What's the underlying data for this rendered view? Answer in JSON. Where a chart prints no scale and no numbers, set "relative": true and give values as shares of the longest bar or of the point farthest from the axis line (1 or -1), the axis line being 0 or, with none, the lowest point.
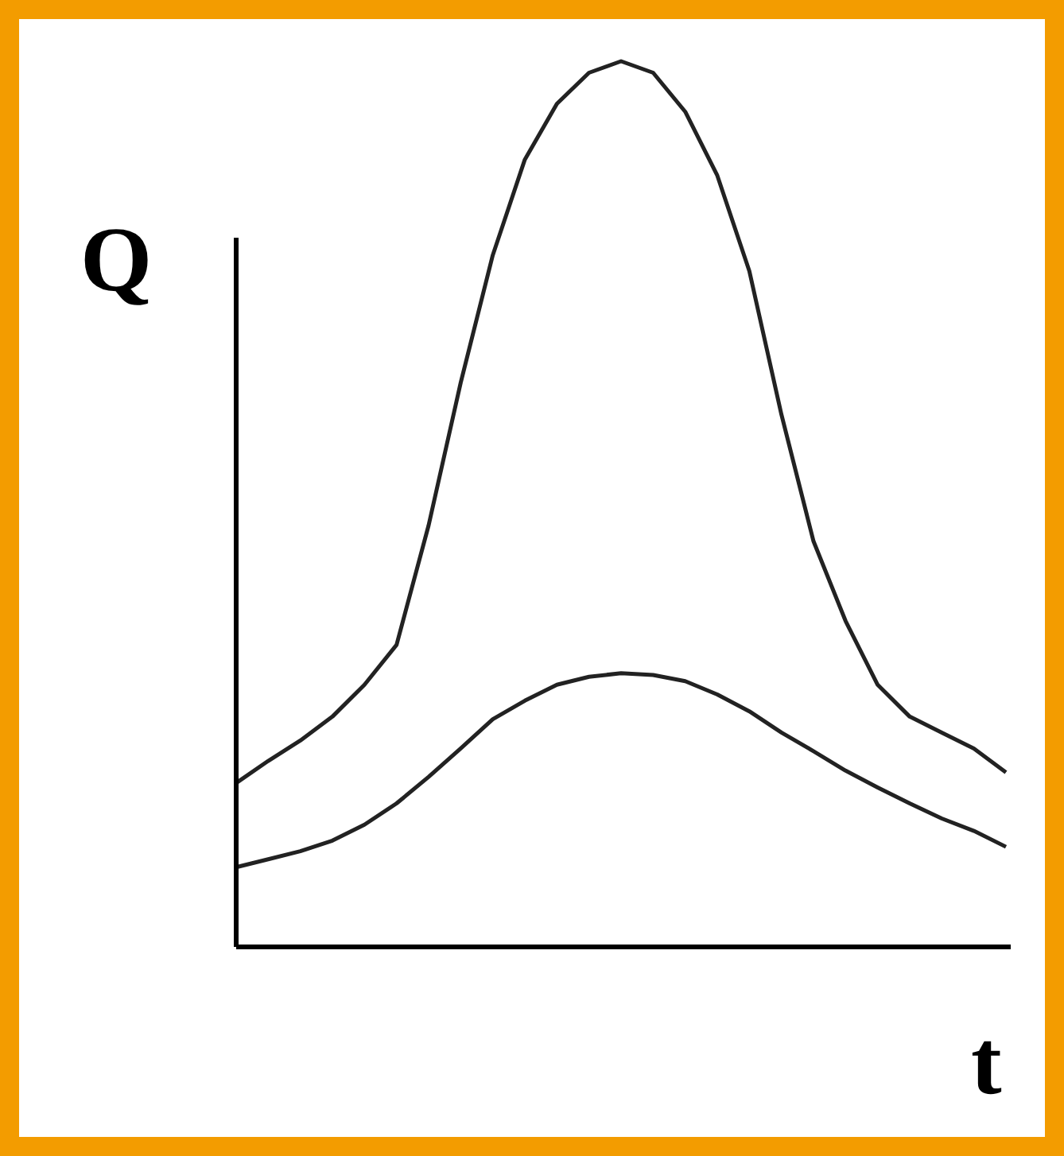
{
  "chart_data": {
    "type": "line",
    "relative": true,
    "xlabel": "t",
    "ylabel": "Q",
    "categories": [
      null,
      null,
      null,
      null,
      null,
      null,
      null,
      null,
      null,
      null,
      null,
      null,
      null,
      null,
      null,
      null,
      null,
      null,
      null,
      null,
      null,
      null,
      null,
      null,
      null
    ],
    "series": [
      {
        "color": "#222222",
        "values": [
          0.185,
          0.21,
          0.233,
          0.26,
          0.296,
          0.341,
          0.476,
          0.637,
          0.781,
          0.889,
          0.952,
          0.987,
          1.0,
          0.987,
          0.943,
          0.871,
          0.763,
          0.601,
          0.458,
          0.368,
          0.296,
          0.26,
          0.242,
          0.224,
          0.197
        ]
      },
      {
        "color": "#222222",
        "values": [
          0.09,
          0.099,
          0.108,
          0.12,
          0.138,
          0.162,
          0.192,
          0.224,
          0.257,
          0.278,
          0.296,
          0.305,
          0.309,
          0.307,
          0.3,
          0.285,
          0.266,
          0.242,
          0.221,
          0.199,
          0.18,
          0.162,
          0.145,
          0.131,
          0.113
        ]
      }
    ]
  }
}
